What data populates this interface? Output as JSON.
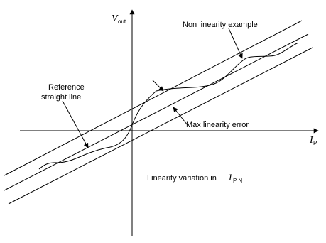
{
  "diagram": {
    "axis_y_label": {
      "main": "V",
      "sub": "out"
    },
    "axis_x_label": {
      "main": "I",
      "sub": "P"
    },
    "annotations": {
      "non_linearity_example": "Non linearity example",
      "reference_line_1": "Reference",
      "reference_line_2": "straight line",
      "max_linearity_error": "Max  linearity error",
      "linearity_variation": "Linearity variation in ",
      "linearity_variation_var": {
        "main": "I",
        "sub": "P N"
      }
    }
  }
}
